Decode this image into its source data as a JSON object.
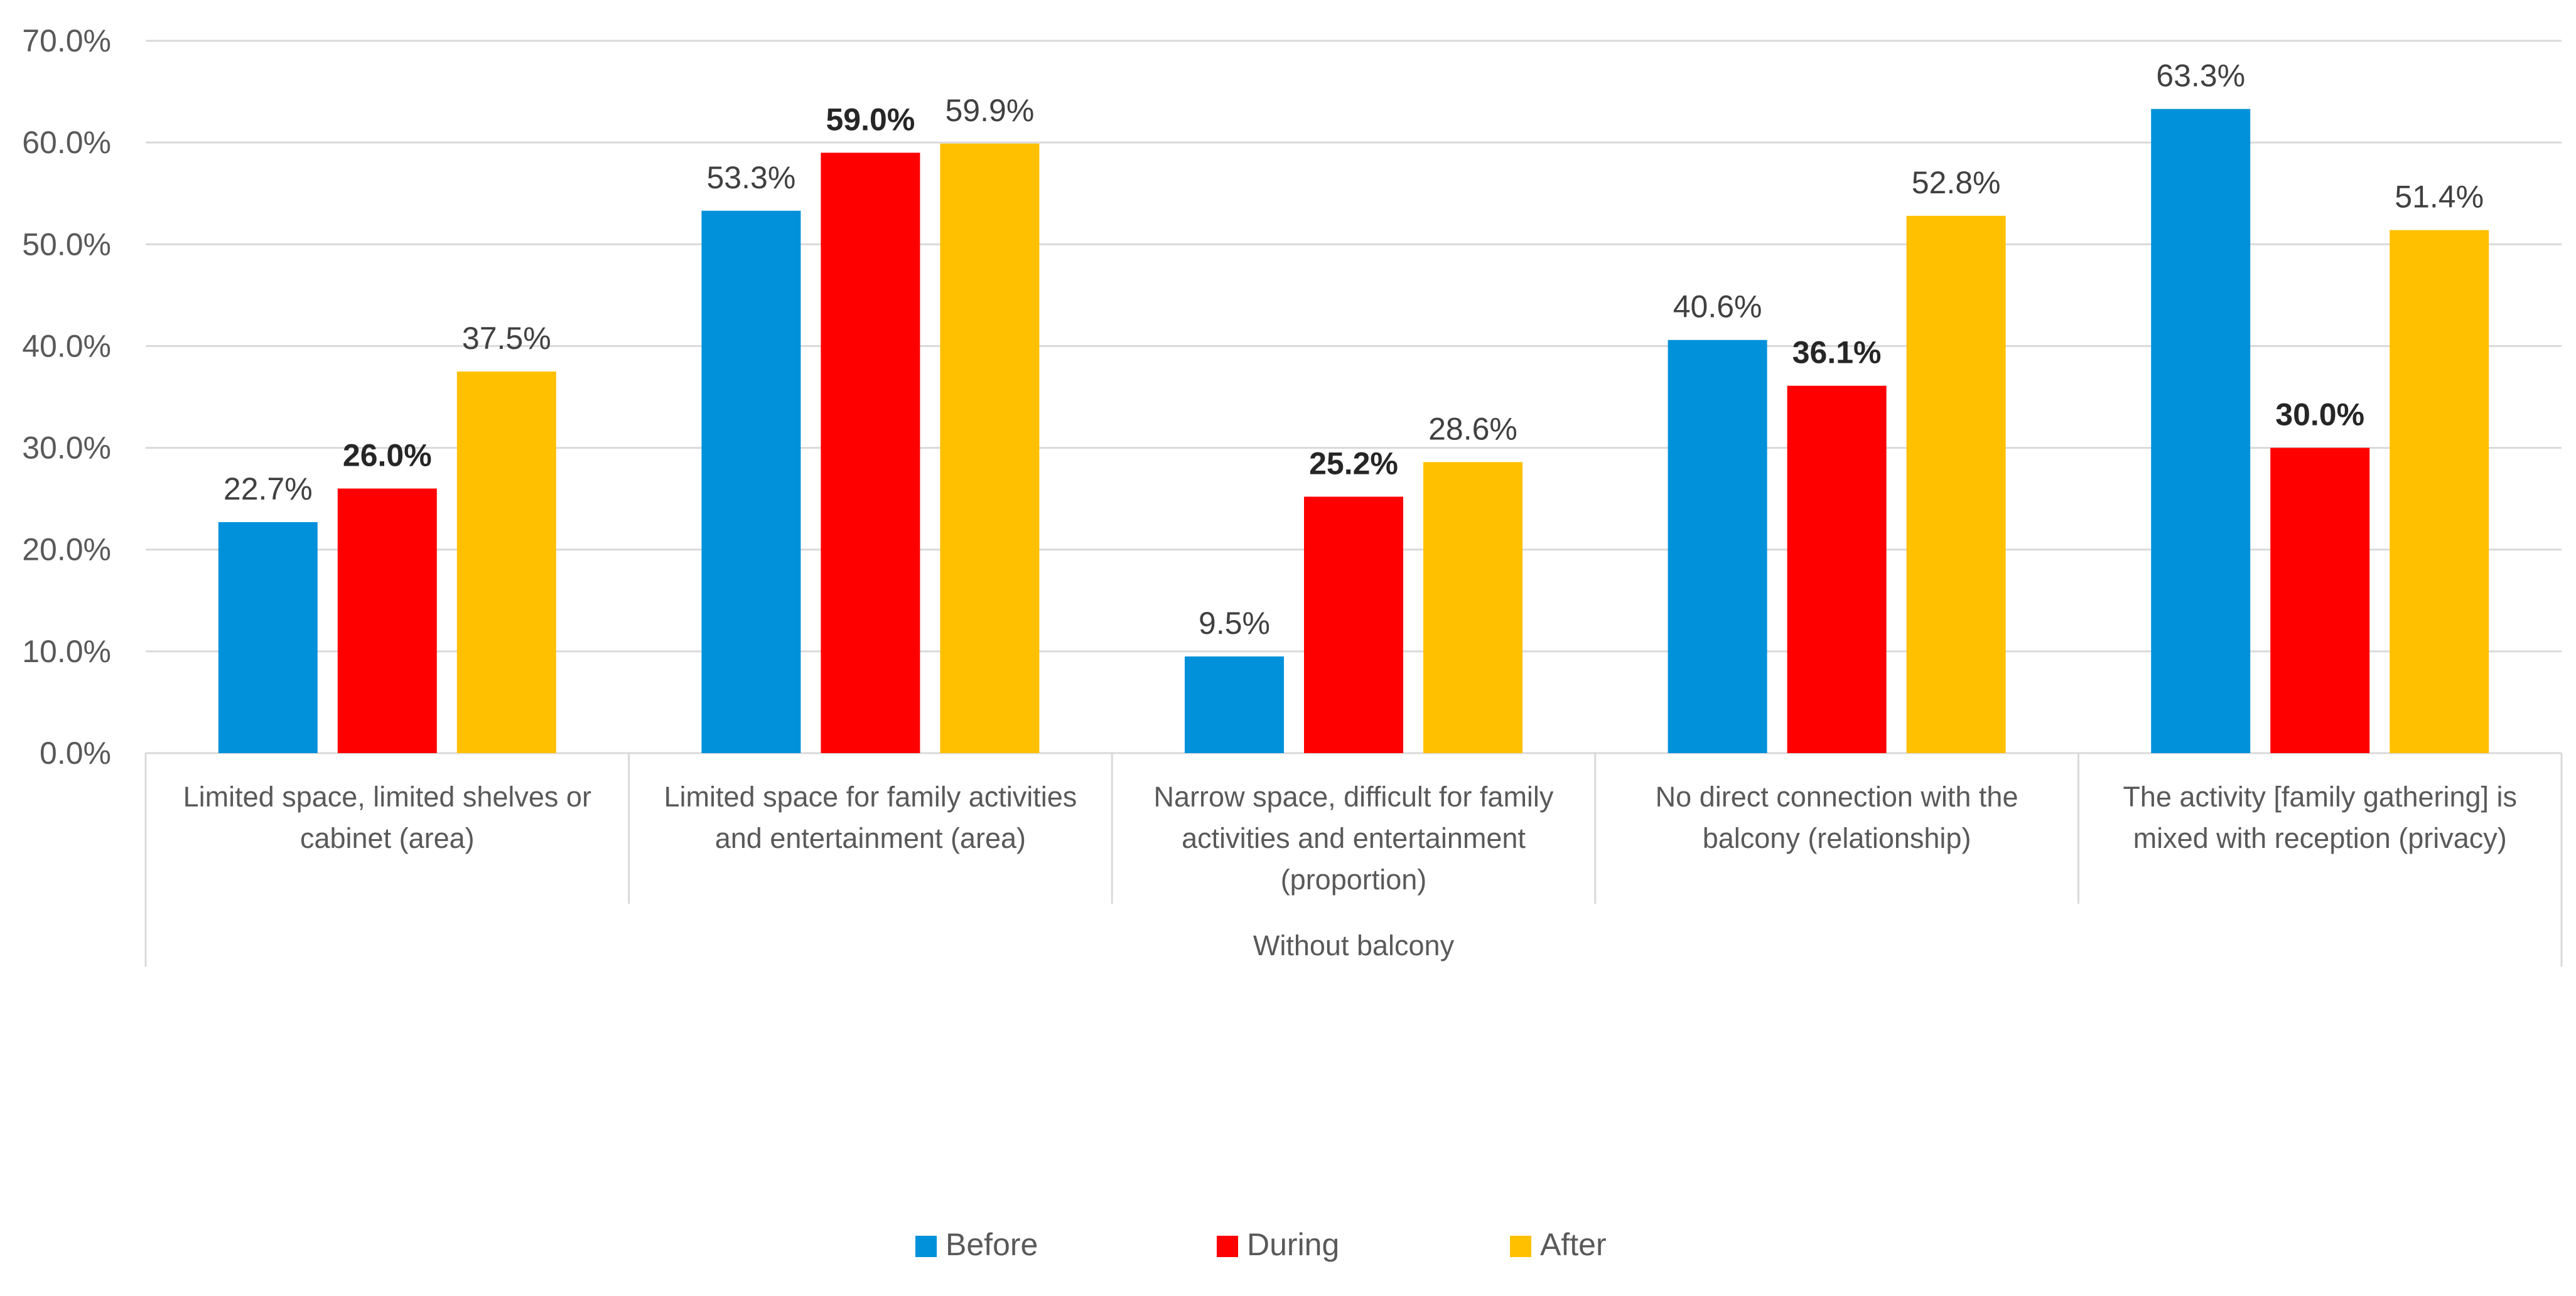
{
  "chart_data": {
    "type": "bar",
    "title": "",
    "xlabel": "",
    "ylabel": "",
    "ylim": [
      0,
      70
    ],
    "y_ticks": [
      0,
      10,
      20,
      30,
      40,
      50,
      60,
      70
    ],
    "y_tick_labels": [
      "0.0%",
      "10.0%",
      "20.0%",
      "30.0%",
      "40.0%",
      "50.0%",
      "60.0%",
      "70.0%"
    ],
    "grid": true,
    "group_label": "Without balcony",
    "categories": [
      [
        "Limited space, limited shelves or",
        "cabinet (area)"
      ],
      [
        "Limited space for family activities",
        "and entertainment (area)"
      ],
      [
        "Narrow space, difficult for family",
        "activities and entertainment",
        "(proportion)"
      ],
      [
        "No direct connection with the",
        "balcony (relationship)"
      ],
      [
        "The activity [family gathering] is",
        "mixed with reception (privacy)"
      ]
    ],
    "series": [
      {
        "name": "Before",
        "color": "#0091DA",
        "values": [
          22.7,
          53.3,
          9.5,
          40.6,
          63.3
        ],
        "labels": [
          "22.7%",
          "53.3%",
          "9.5%",
          "40.6%",
          "63.3%"
        ],
        "bold": [
          false,
          false,
          false,
          false,
          false
        ]
      },
      {
        "name": "During",
        "color": "#FF0000",
        "values": [
          26.0,
          59.0,
          25.2,
          36.1,
          30.0
        ],
        "labels": [
          "26.0%",
          "59.0%",
          "25.2%",
          "36.1%",
          "30.0%"
        ],
        "bold": [
          true,
          true,
          true,
          true,
          true
        ]
      },
      {
        "name": "After",
        "color": "#FFC000",
        "values": [
          37.5,
          59.9,
          28.6,
          52.8,
          51.4
        ],
        "labels": [
          "37.5%",
          "59.9%",
          "28.6%",
          "52.8%",
          "51.4%"
        ],
        "bold": [
          false,
          false,
          false,
          false,
          false
        ]
      }
    ],
    "legend_position": "bottom"
  }
}
